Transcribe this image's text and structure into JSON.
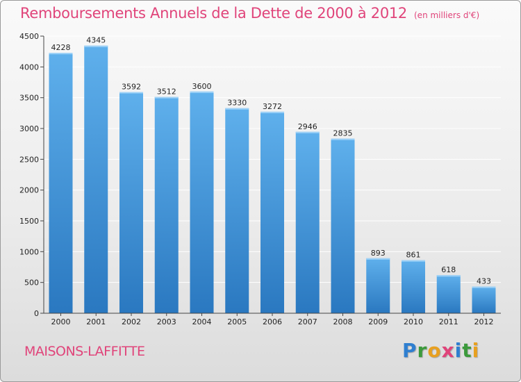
{
  "chart_data": {
    "type": "bar",
    "title": "Remboursements Annuels de la Dette de 2000 à 2012",
    "subtitle": "(en milliers d'€)",
    "categories": [
      "2000",
      "2001",
      "2002",
      "2003",
      "2004",
      "2005",
      "2006",
      "2007",
      "2008",
      "2009",
      "2010",
      "2011",
      "2012"
    ],
    "values": [
      4228,
      4345,
      3592,
      3512,
      3600,
      3330,
      3272,
      2946,
      2835,
      893,
      861,
      618,
      433
    ],
    "ylim": [
      0,
      4500
    ],
    "yticks": [
      0,
      500,
      1000,
      1500,
      2000,
      2500,
      3000,
      3500,
      4000,
      4500
    ],
    "grid": true,
    "bar_color": "#3f8fd8",
    "xlabel": "",
    "ylabel": ""
  },
  "footer": {
    "city": "MAISONS-LAFFITTE",
    "logo_letters": [
      "P",
      "r",
      "o",
      "x",
      "i",
      "t",
      "i"
    ]
  },
  "colors": {
    "title": "#e0447a",
    "grid": "#ffffff"
  }
}
